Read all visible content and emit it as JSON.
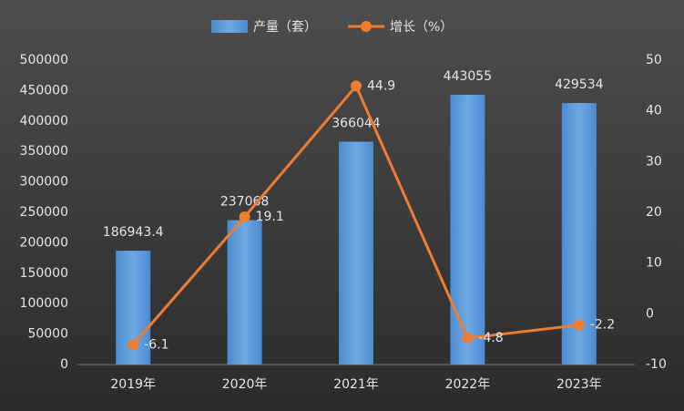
{
  "chart_data": {
    "type": "bar",
    "categories": [
      "2019年",
      "2020年",
      "2021年",
      "2022年",
      "2023年"
    ],
    "series": [
      {
        "name": "产量（套）",
        "type": "bar",
        "color": "#5b9bd5",
        "values": [
          186943.4,
          237068,
          366044,
          443055,
          429534
        ]
      },
      {
        "name": "增长（%）",
        "type": "line",
        "axis": "y2",
        "color": "#ed7d31",
        "values": [
          -6.1,
          19.1,
          44.9,
          -4.8,
          -2.2
        ]
      }
    ],
    "ylim": [
      0,
      500000
    ],
    "yticks": [
      0,
      50000,
      100000,
      150000,
      200000,
      250000,
      300000,
      350000,
      400000,
      450000,
      500000
    ],
    "y2lim": [
      -10,
      50
    ],
    "y2ticks": [
      -10,
      0,
      10,
      20,
      30,
      40,
      50
    ],
    "grid": false,
    "legend": "top"
  }
}
